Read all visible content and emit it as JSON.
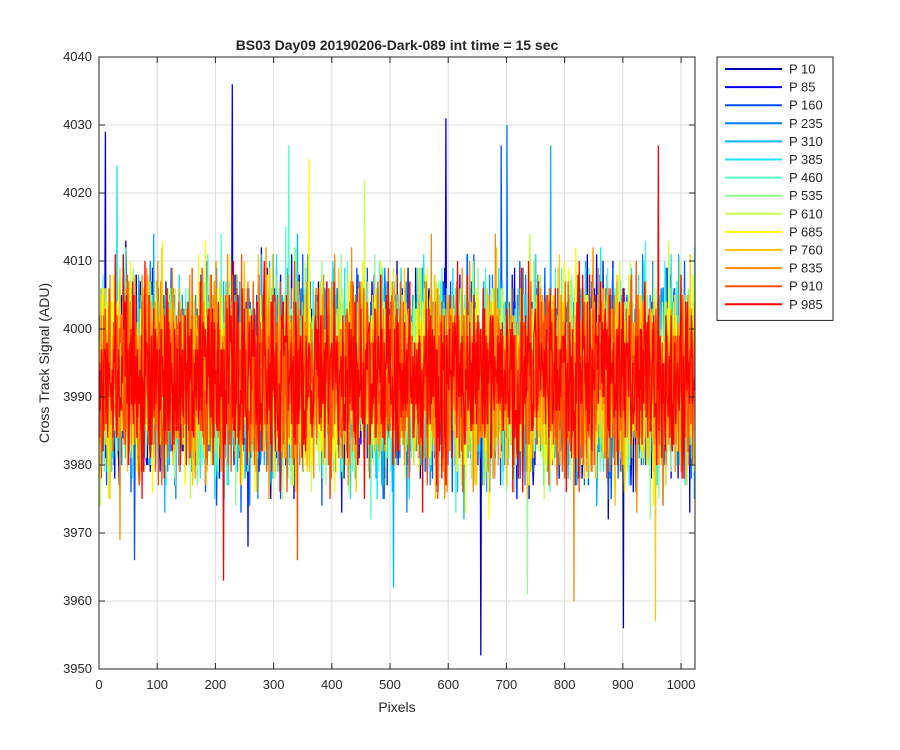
{
  "chart_data": {
    "type": "line",
    "title": "BS03 Day09 20190206-Dark-089 int time = 15 sec",
    "xlabel": "Pixels",
    "ylabel": "Cross Track Signal (ADU)",
    "xlim": [
      0,
      1024
    ],
    "ylim": [
      3950,
      4040
    ],
    "x_ticks": [
      0,
      100,
      200,
      300,
      400,
      500,
      600,
      700,
      800,
      900,
      1000
    ],
    "y_ticks": [
      3950,
      3960,
      3970,
      3980,
      3990,
      4000,
      4010,
      4020,
      4030,
      4040
    ],
    "grid": true,
    "legend_position": "outside-top-right",
    "x_points": 1024,
    "series": [
      {
        "name": "P 10",
        "color": "#0000b0",
        "mean": 3993,
        "sd": 7,
        "peaks": [
          [
            10,
            4029
          ],
          [
            598,
            3996
          ],
          [
            655,
            3952
          ],
          [
            900,
            3956
          ]
        ]
      },
      {
        "name": "P 85",
        "color": "#0000ff",
        "mean": 3993,
        "sd": 7,
        "peaks": [
          [
            228,
            4036
          ],
          [
            255,
            3968
          ],
          [
            595,
            4031
          ]
        ]
      },
      {
        "name": "P 160",
        "color": "#0050ff",
        "mean": 3993,
        "sd": 7,
        "peaks": [
          [
            60,
            3966
          ],
          [
            690,
            4027
          ]
        ]
      },
      {
        "name": "P 235",
        "color": "#0080ff",
        "mean": 3993,
        "sd": 7,
        "peaks": [
          [
            700,
            4030
          ]
        ]
      },
      {
        "name": "P 310",
        "color": "#00b4ff",
        "mean": 3993,
        "sd": 7,
        "peaks": [
          [
            505,
            3962
          ],
          [
            775,
            4027
          ]
        ]
      },
      {
        "name": "P 385",
        "color": "#19e6f0",
        "mean": 3993,
        "sd": 7,
        "peaks": [
          [
            30,
            4024
          ]
        ]
      },
      {
        "name": "P 460",
        "color": "#50ffc8",
        "mean": 3993,
        "sd": 7,
        "peaks": [
          [
            325,
            4027
          ]
        ]
      },
      {
        "name": "P 535",
        "color": "#8cff8c",
        "mean": 3993,
        "sd": 7,
        "peaks": [
          [
            735,
            3961
          ]
        ]
      },
      {
        "name": "P 610",
        "color": "#c8ff50",
        "mean": 3993,
        "sd": 7,
        "peaks": [
          [
            455,
            4022
          ]
        ]
      },
      {
        "name": "P 685",
        "color": "#ffff00",
        "mean": 3993,
        "sd": 7,
        "peaks": [
          [
            360,
            4025
          ]
        ]
      },
      {
        "name": "P 760",
        "color": "#ffc800",
        "mean": 3993,
        "sd": 7,
        "peaks": [
          [
            955,
            3957
          ]
        ]
      },
      {
        "name": "P 835",
        "color": "#ff8c00",
        "mean": 3993,
        "sd": 7,
        "peaks": [
          [
            35,
            3969
          ],
          [
            815,
            3960
          ]
        ]
      },
      {
        "name": "P 910",
        "color": "#ff5000",
        "mean": 3993,
        "sd": 7,
        "peaks": [
          [
            340,
            3966
          ]
        ]
      },
      {
        "name": "P 985",
        "color": "#ff0000",
        "mean": 3993,
        "sd": 6.5,
        "peaks": [
          [
            960,
            4027
          ],
          [
            213,
            3963
          ]
        ]
      }
    ]
  }
}
